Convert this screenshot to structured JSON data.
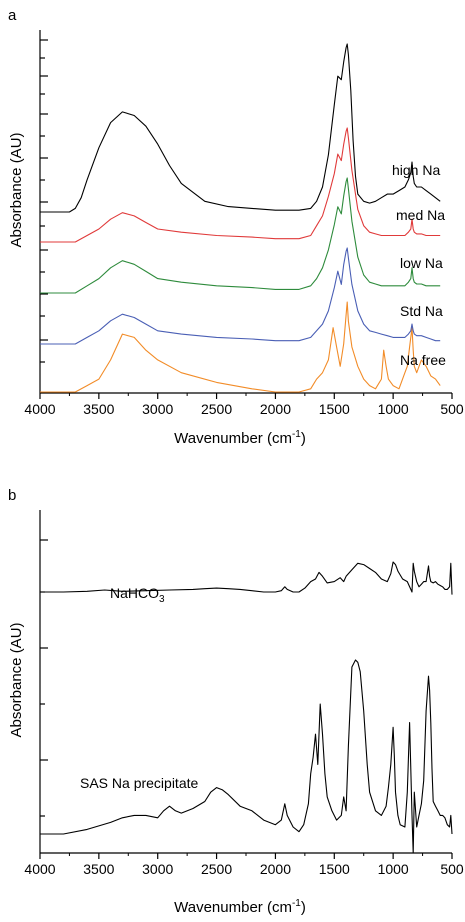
{
  "chart_data": [
    {
      "panel": "a",
      "type": "line",
      "xlabel": "Wavenumber (cm",
      "xlabel_sup": "-1",
      "xlabel_close": ")",
      "ylabel": "Absorbance (AU)",
      "xlim": [
        4000,
        500
      ],
      "x_reversed": true,
      "xticks": [
        "4000",
        "3500",
        "3000",
        "2500",
        "2000",
        "1500",
        "1000",
        "500"
      ],
      "y_tick_labels_shown": false,
      "grid": false,
      "series": [
        {
          "name": "high Na",
          "color": "#f28c28",
          "x": [
            4000,
            3700,
            3600,
            3500,
            3400,
            3300,
            3200,
            3100,
            3000,
            2800,
            2500,
            2200,
            2000,
            1800,
            1700,
            1650,
            1600,
            1550,
            1510,
            1480,
            1450,
            1420,
            1400,
            1390,
            1380,
            1350,
            1300,
            1250,
            1200,
            1150,
            1100,
            1080,
            1060,
            1040,
            1000,
            950,
            900,
            880,
            860,
            840,
            830,
            820,
            800,
            760,
            720,
            680,
            640,
            600
          ],
          "values": [
            0.72,
            0.72,
            0.74,
            0.76,
            0.82,
            0.9,
            0.89,
            0.85,
            0.82,
            0.78,
            0.75,
            0.73,
            0.72,
            0.72,
            0.73,
            0.76,
            0.78,
            0.82,
            0.92,
            0.86,
            0.8,
            0.87,
            0.96,
            1.0,
            0.94,
            0.86,
            0.8,
            0.76,
            0.74,
            0.73,
            0.76,
            0.85,
            0.8,
            0.76,
            0.74,
            0.73,
            0.78,
            0.8,
            0.86,
            0.92,
            0.85,
            0.8,
            0.78,
            0.82,
            0.8,
            0.77,
            0.76,
            0.74
          ]
        },
        {
          "name": "med Na",
          "color": "#4a5fb5",
          "x": [
            4000,
            3700,
            3600,
            3500,
            3400,
            3300,
            3200,
            3100,
            3000,
            2800,
            2500,
            2200,
            2000,
            1800,
            1700,
            1650,
            1600,
            1550,
            1500,
            1470,
            1440,
            1420,
            1400,
            1390,
            1380,
            1350,
            1300,
            1250,
            1200,
            1150,
            1100,
            1050,
            1000,
            950,
            900,
            870,
            850,
            840,
            830,
            820,
            800,
            760,
            720,
            680,
            640,
            600
          ],
          "values": [
            0.54,
            0.54,
            0.56,
            0.58,
            0.61,
            0.63,
            0.62,
            0.6,
            0.58,
            0.57,
            0.56,
            0.555,
            0.55,
            0.55,
            0.56,
            0.58,
            0.6,
            0.64,
            0.71,
            0.76,
            0.72,
            0.78,
            0.82,
            0.83,
            0.8,
            0.72,
            0.64,
            0.6,
            0.58,
            0.575,
            0.57,
            0.565,
            0.56,
            0.56,
            0.56,
            0.57,
            0.58,
            0.6,
            0.58,
            0.57,
            0.565,
            0.565,
            0.56,
            0.555,
            0.55,
            0.55
          ]
        },
        {
          "name": "low Na",
          "color": "#2e8b3c",
          "x": [
            4000,
            3700,
            3600,
            3500,
            3400,
            3300,
            3200,
            3100,
            3000,
            2800,
            2500,
            2200,
            2000,
            1800,
            1700,
            1650,
            1600,
            1550,
            1500,
            1470,
            1440,
            1420,
            1400,
            1390,
            1380,
            1350,
            1300,
            1250,
            1200,
            1150,
            1100,
            1050,
            1000,
            950,
            900,
            870,
            850,
            840,
            830,
            820,
            800,
            760,
            720,
            680,
            640,
            600
          ],
          "values": [
            0.38,
            0.38,
            0.4,
            0.42,
            0.45,
            0.47,
            0.46,
            0.44,
            0.42,
            0.41,
            0.4,
            0.395,
            0.39,
            0.39,
            0.4,
            0.42,
            0.45,
            0.5,
            0.57,
            0.62,
            0.6,
            0.65,
            0.69,
            0.7,
            0.67,
            0.58,
            0.48,
            0.43,
            0.41,
            0.405,
            0.4,
            0.4,
            0.4,
            0.4,
            0.4,
            0.41,
            0.42,
            0.45,
            0.42,
            0.41,
            0.405,
            0.405,
            0.4,
            0.4,
            0.4,
            0.4
          ]
        },
        {
          "name": "Std Na",
          "color": "#e03a3a",
          "x": [
            4000,
            3700,
            3600,
            3500,
            3400,
            3300,
            3200,
            3100,
            3000,
            2800,
            2500,
            2200,
            2000,
            1800,
            1700,
            1650,
            1600,
            1550,
            1500,
            1470,
            1440,
            1420,
            1400,
            1390,
            1380,
            1350,
            1300,
            1250,
            1200,
            1150,
            1100,
            1050,
            1000,
            950,
            900,
            870,
            850,
            840,
            830,
            820,
            800,
            760,
            720,
            680,
            640,
            600
          ],
          "values": [
            0.22,
            0.22,
            0.24,
            0.26,
            0.29,
            0.31,
            0.3,
            0.28,
            0.26,
            0.25,
            0.24,
            0.235,
            0.23,
            0.23,
            0.24,
            0.27,
            0.3,
            0.36,
            0.43,
            0.49,
            0.47,
            0.52,
            0.56,
            0.57,
            0.54,
            0.44,
            0.32,
            0.27,
            0.25,
            0.245,
            0.24,
            0.24,
            0.24,
            0.24,
            0.24,
            0.25,
            0.26,
            0.29,
            0.26,
            0.25,
            0.245,
            0.245,
            0.24,
            0.24,
            0.24,
            0.24
          ]
        },
        {
          "name": "Na free",
          "color": "#000000",
          "x": [
            4000,
            3750,
            3700,
            3650,
            3600,
            3500,
            3400,
            3300,
            3200,
            3100,
            3000,
            2900,
            2800,
            2600,
            2400,
            2200,
            2000,
            1800,
            1700,
            1650,
            1600,
            1550,
            1500,
            1470,
            1440,
            1420,
            1400,
            1390,
            1380,
            1360,
            1340,
            1320,
            1300,
            1250,
            1200,
            1150,
            1100,
            1050,
            1000,
            950,
            900,
            870,
            850,
            840,
            830,
            820,
            800,
            760,
            720,
            680,
            640,
            600
          ],
          "values": [
            0.06,
            0.06,
            0.07,
            0.1,
            0.15,
            0.24,
            0.31,
            0.34,
            0.33,
            0.3,
            0.25,
            0.19,
            0.14,
            0.09,
            0.075,
            0.07,
            0.065,
            0.065,
            0.07,
            0.09,
            0.13,
            0.22,
            0.36,
            0.44,
            0.43,
            0.48,
            0.52,
            0.53,
            0.5,
            0.4,
            0.26,
            0.16,
            0.11,
            0.09,
            0.085,
            0.09,
            0.1,
            0.11,
            0.11,
            0.12,
            0.13,
            0.15,
            0.17,
            0.2,
            0.16,
            0.14,
            0.13,
            0.13,
            0.12,
            0.11,
            0.1,
            0.09
          ]
        }
      ]
    },
    {
      "panel": "b",
      "type": "line",
      "xlabel": "Wavenumber (cm",
      "xlabel_sup": "-1",
      "xlabel_close": ")",
      "ylabel": "Absorbance (AU)",
      "xlim": [
        4000,
        500
      ],
      "x_reversed": true,
      "xticks": [
        "4000",
        "3500",
        "3000",
        "2500",
        "2000",
        "1500",
        "1000",
        "500"
      ],
      "y_tick_labels_shown": false,
      "grid": false,
      "series": [
        {
          "name": "NaHCO3",
          "name_main": "NaHCO",
          "name_sub": "3",
          "color": "#000000",
          "x": [
            4000,
            3800,
            3600,
            3450,
            3300,
            3100,
            2900,
            2700,
            2600,
            2500,
            2400,
            2300,
            2200,
            2100,
            2000,
            1950,
            1920,
            1900,
            1850,
            1800,
            1750,
            1700,
            1660,
            1630,
            1600,
            1560,
            1500,
            1450,
            1420,
            1400,
            1350,
            1300,
            1250,
            1200,
            1150,
            1100,
            1050,
            1020,
            1000,
            980,
            960,
            920,
            880,
            840,
            830,
            820,
            800,
            780,
            760,
            740,
            720,
            700,
            690,
            680,
            660,
            640,
            620,
            600,
            580,
            560,
            540,
            520,
            510,
            500
          ],
          "values": [
            0.62,
            0.62,
            0.625,
            0.635,
            0.625,
            0.63,
            0.635,
            0.64,
            0.645,
            0.65,
            0.645,
            0.64,
            0.63,
            0.62,
            0.62,
            0.63,
            0.66,
            0.64,
            0.62,
            0.62,
            0.65,
            0.7,
            0.72,
            0.77,
            0.74,
            0.69,
            0.7,
            0.73,
            0.7,
            0.74,
            0.79,
            0.84,
            0.83,
            0.8,
            0.77,
            0.72,
            0.7,
            0.76,
            0.85,
            0.83,
            0.78,
            0.72,
            0.7,
            0.62,
            0.84,
            0.78,
            0.7,
            0.66,
            0.68,
            0.7,
            0.7,
            0.82,
            0.74,
            0.7,
            0.69,
            0.7,
            0.68,
            0.67,
            0.66,
            0.64,
            0.64,
            0.66,
            0.84,
            0.6
          ]
        },
        {
          "name": "SAS Na precipitate",
          "color": "#000000",
          "x": [
            4000,
            3800,
            3600,
            3400,
            3300,
            3200,
            3100,
            3000,
            2950,
            2900,
            2850,
            2800,
            2700,
            2600,
            2550,
            2500,
            2450,
            2400,
            2300,
            2200,
            2100,
            2000,
            1950,
            1920,
            1900,
            1850,
            1800,
            1760,
            1720,
            1700,
            1680,
            1660,
            1640,
            1620,
            1600,
            1580,
            1560,
            1520,
            1480,
            1440,
            1420,
            1400,
            1380,
            1350,
            1320,
            1300,
            1280,
            1250,
            1220,
            1200,
            1150,
            1100,
            1060,
            1040,
            1020,
            1000,
            990,
            980,
            960,
            940,
            900,
            880,
            860,
            840,
            830,
            820,
            800,
            780,
            760,
            740,
            720,
            700,
            690,
            680,
            670,
            660,
            640,
            620,
            600,
            580,
            560,
            540,
            520,
            510,
            500
          ],
          "values": [
            0.02,
            0.02,
            0.04,
            0.07,
            0.09,
            0.1,
            0.1,
            0.09,
            0.12,
            0.14,
            0.12,
            0.11,
            0.13,
            0.16,
            0.2,
            0.22,
            0.21,
            0.19,
            0.14,
            0.12,
            0.08,
            0.06,
            0.08,
            0.15,
            0.1,
            0.05,
            0.03,
            0.06,
            0.15,
            0.28,
            0.35,
            0.45,
            0.32,
            0.58,
            0.45,
            0.28,
            0.18,
            0.12,
            0.08,
            0.1,
            0.18,
            0.12,
            0.4,
            0.74,
            0.77,
            0.76,
            0.72,
            0.55,
            0.32,
            0.2,
            0.12,
            0.1,
            0.14,
            0.22,
            0.32,
            0.48,
            0.36,
            0.2,
            0.1,
            0.06,
            0.05,
            0.2,
            0.5,
            0.1,
            -0.4,
            0.2,
            0.05,
            0.1,
            0.15,
            0.25,
            0.55,
            0.7,
            0.64,
            0.5,
            0.3,
            0.16,
            0.14,
            0.12,
            0.1,
            0.1,
            0.09,
            0.06,
            0.05,
            0.1,
            0.02
          ]
        }
      ]
    }
  ]
}
